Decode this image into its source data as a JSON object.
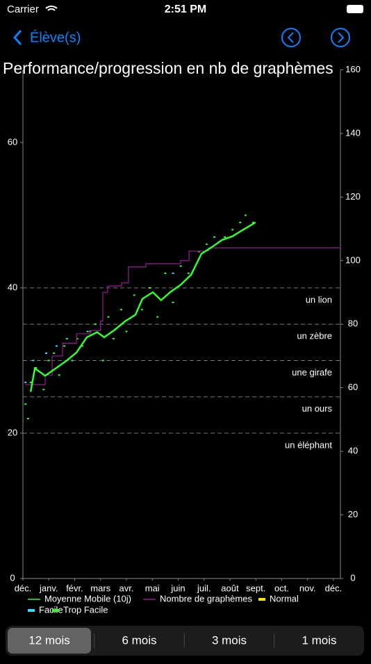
{
  "status_bar": {
    "carrier": "Carrier",
    "time": "2:51 PM"
  },
  "nav": {
    "back": "Élève(s)"
  },
  "chart_data": {
    "type": "line",
    "title": "Performance/progression en nb de graphèmes",
    "xlim": [
      0,
      12.27
    ],
    "xticks": [
      {
        "value": 0,
        "label": "déc."
      },
      {
        "value": 1,
        "label": "janv."
      },
      {
        "value": 2,
        "label": "févr."
      },
      {
        "value": 3,
        "label": "mars"
      },
      {
        "value": 4,
        "label": "avr."
      },
      {
        "value": 5,
        "label": "mai"
      },
      {
        "value": 6,
        "label": "juin"
      },
      {
        "value": 7,
        "label": "juil."
      },
      {
        "value": 8,
        "label": "août"
      },
      {
        "value": 9,
        "label": "sept."
      },
      {
        "value": 10,
        "label": "oct."
      },
      {
        "value": 11,
        "label": "nov."
      },
      {
        "value": 12,
        "label": "déc."
      }
    ],
    "ylim": [
      0,
      70
    ],
    "yticks": [
      0,
      20,
      40,
      60
    ],
    "y2lim": [
      0,
      160
    ],
    "y2ticks": [
      0,
      20,
      40,
      60,
      80,
      100,
      120,
      140,
      160
    ],
    "levels": [
      {
        "value": 40,
        "label": "un lion"
      },
      {
        "value": 35,
        "label": "un zèbre"
      },
      {
        "value": 30,
        "label": "une girafe"
      },
      {
        "value": 25,
        "label": "un ours"
      },
      {
        "value": 20,
        "label": "un éléphant"
      }
    ],
    "series": [
      {
        "name": "Moyenne Mobile (10j)",
        "color": "#33ff33",
        "kind": "line",
        "x": [
          0.3,
          0.46,
          0.67,
          0.86,
          1.26,
          1.66,
          2.07,
          2.47,
          2.87,
          3.14,
          3.54,
          3.95,
          4.35,
          4.62,
          5.02,
          5.34,
          5.69,
          6.09,
          6.5,
          6.9,
          7.3,
          7.7,
          8.1,
          8.51,
          8.99
        ],
        "values": [
          25.7,
          28.9,
          28.4,
          27.9,
          28.9,
          29.9,
          31.1,
          33.2,
          33.9,
          33.2,
          34.2,
          35.4,
          36.3,
          38.5,
          39.4,
          38.3,
          39.4,
          40.4,
          41.8,
          44.7,
          45.6,
          46.6,
          47.1,
          48.0,
          49.0
        ]
      },
      {
        "name": "Nombre de graphèmes",
        "color": "#8e1a8e",
        "kind": "step",
        "axis": "y2",
        "x": [
          0.08,
          0.86,
          1.13,
          1.53,
          2.07,
          2.6,
          3.0,
          3.09,
          3.27,
          3.81,
          4.08,
          4.75,
          6.09,
          6.42,
          7.17,
          12.27
        ],
        "values": [
          61,
          64,
          70,
          74,
          77,
          78,
          81,
          90,
          92,
          93,
          98,
          99,
          100,
          103,
          104,
          104
        ]
      },
      {
        "name": "Normal",
        "color": "#ffe600",
        "kind": "scatter",
        "x": [],
        "values": []
      },
      {
        "name": "Facile",
        "color": "#33ddff",
        "kind": "scatter",
        "x": [
          0.1,
          0.4,
          0.9,
          1.3,
          1.7,
          2.6,
          5.8
        ],
        "values": [
          27,
          30,
          31,
          32,
          33,
          34,
          42
        ]
      },
      {
        "name": "Trop Facile",
        "color": "#33ff33",
        "kind": "scatter",
        "x": [
          0.1,
          0.2,
          0.3,
          0.5,
          0.8,
          1.0,
          1.2,
          1.4,
          1.6,
          1.9,
          2.1,
          2.3,
          2.5,
          2.8,
          3.1,
          3.3,
          3.5,
          3.8,
          4.0,
          4.3,
          4.6,
          4.9,
          5.2,
          5.5,
          5.8,
          6.1,
          6.4,
          6.8,
          7.1,
          7.4,
          7.8,
          8.1,
          8.4,
          8.6,
          8.9
        ],
        "values": [
          24,
          22,
          27,
          29,
          26,
          30,
          31,
          28,
          32,
          30,
          33,
          32,
          34,
          35,
          30,
          36,
          33,
          37,
          34,
          39,
          37,
          40,
          36,
          42,
          38,
          43,
          42,
          45,
          46,
          47,
          47,
          48,
          49,
          50,
          49
        ]
      }
    ]
  },
  "segments": [
    "12 mois",
    "6 mois",
    "3 mois",
    "1 mois"
  ]
}
